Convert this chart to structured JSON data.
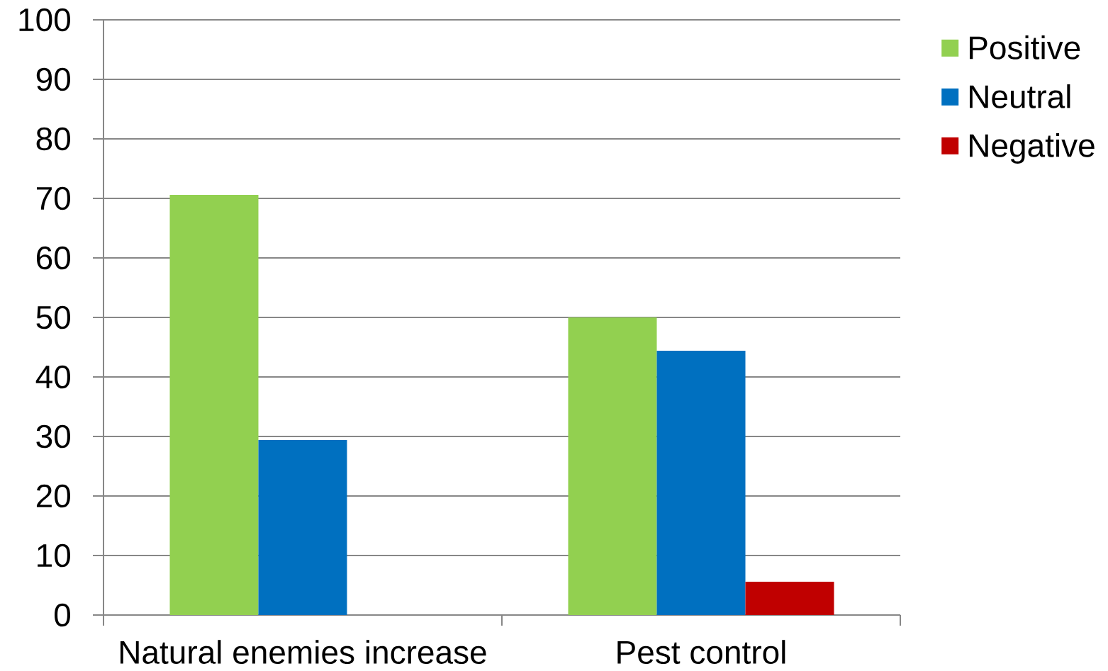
{
  "chart_data": {
    "type": "bar",
    "categories": [
      "Natural enemies increase",
      "Pest control"
    ],
    "series": [
      {
        "name": "Positive",
        "color": "#92d050",
        "values": [
          70.6,
          50
        ]
      },
      {
        "name": "Neutral",
        "color": "#0070c0",
        "values": [
          29.4,
          44.4
        ]
      },
      {
        "name": "Negative",
        "color": "#c00000",
        "values": [
          null,
          5.6
        ]
      }
    ],
    "ylim": [
      0,
      100
    ],
    "yticks": [
      0,
      10,
      20,
      30,
      40,
      50,
      60,
      70,
      80,
      90,
      100
    ],
    "grid": "y",
    "legend": "top right"
  }
}
